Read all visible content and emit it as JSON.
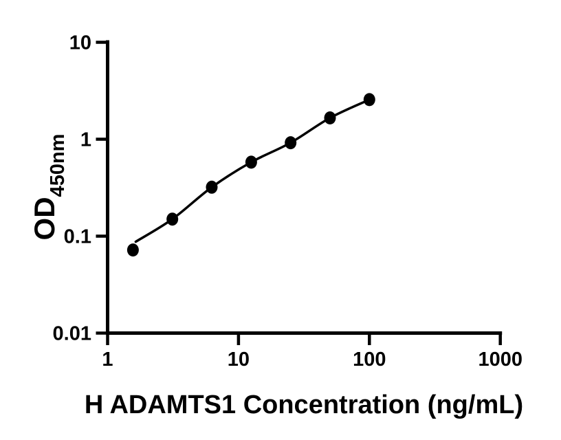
{
  "chart_data": {
    "type": "scatter",
    "title": "",
    "xlabel": "H ADAMTS1 Concentration (ng/mL)",
    "ylabel": "OD",
    "ylabel_subscript": "450nm",
    "x_scale": "log",
    "y_scale": "log",
    "xlim": [
      1,
      1000
    ],
    "ylim": [
      0.01,
      10
    ],
    "x_ticks": [
      1,
      10,
      100,
      1000
    ],
    "x_tick_labels": [
      "1",
      "10",
      "100",
      "1000"
    ],
    "y_ticks": [
      0.01,
      0.1,
      1,
      10
    ],
    "y_tick_labels": [
      "0.01",
      "0.1",
      "1",
      "10"
    ],
    "grid": false,
    "legend": null,
    "marker": {
      "shape": "filled-circle",
      "color": "#000000"
    },
    "line": {
      "color": "#000000",
      "style": "solid",
      "fit": "smooth-through-points"
    },
    "series": [
      {
        "x": [
          1.563,
          3.125,
          6.25,
          12.5,
          25,
          50,
          100
        ],
        "y": [
          0.072,
          0.15,
          0.32,
          0.58,
          0.92,
          1.66,
          2.56
        ]
      }
    ]
  },
  "colors": {
    "background": "#ffffff",
    "axis": "#000000",
    "text": "#000000"
  }
}
